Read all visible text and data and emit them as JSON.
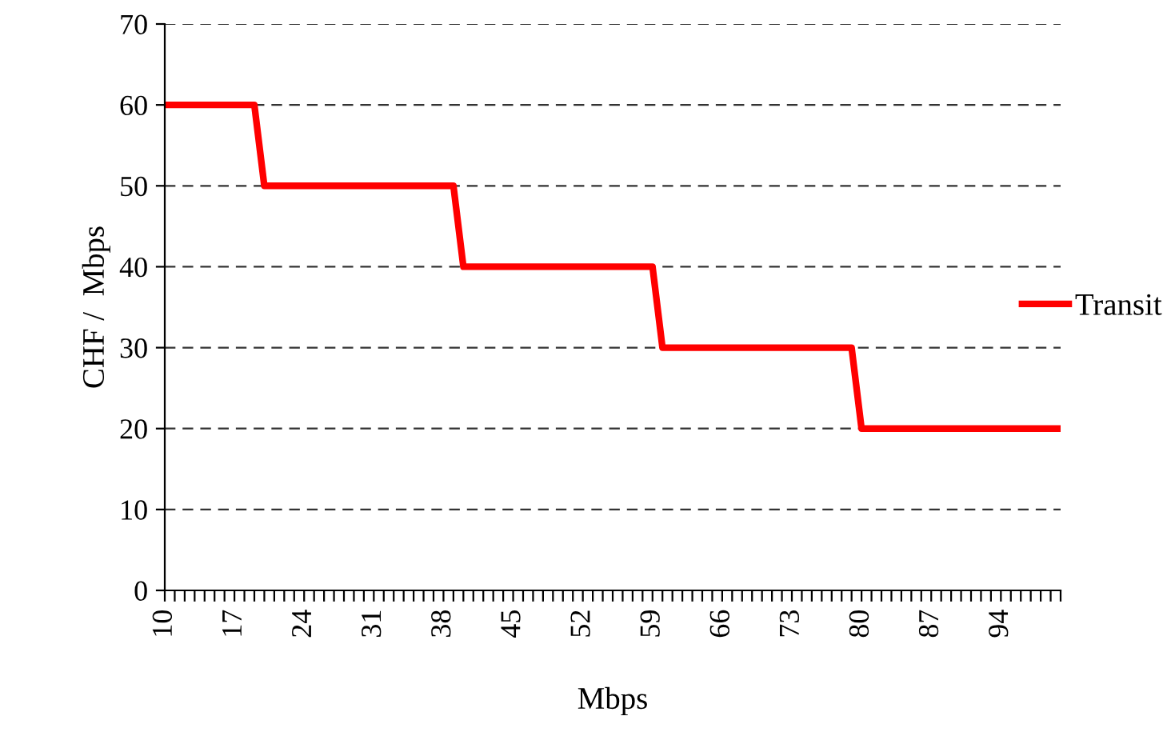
{
  "chart_data": {
    "type": "line",
    "xlabel": "Mbps",
    "ylabel": "CHF /  Mbps",
    "categories": [
      "10",
      null,
      null,
      null,
      null,
      null,
      null,
      "17",
      null,
      null,
      null,
      null,
      null,
      null,
      "24",
      null,
      null,
      null,
      null,
      null,
      null,
      "31",
      null,
      null,
      null,
      null,
      null,
      null,
      "38",
      null,
      null,
      null,
      null,
      null,
      null,
      "45",
      null,
      null,
      null,
      null,
      null,
      null,
      "52",
      null,
      null,
      null,
      null,
      null,
      null,
      "59",
      null,
      null,
      null,
      null,
      null,
      null,
      "66",
      null,
      null,
      null,
      null,
      null,
      null,
      "73",
      null,
      null,
      null,
      null,
      null,
      null,
      "80",
      null,
      null,
      null,
      null,
      null,
      null,
      "87",
      null,
      null,
      null,
      null,
      null,
      null,
      "94",
      null,
      null,
      null,
      null,
      null,
      null
    ],
    "series": [
      {
        "name": "Transit",
        "color": "#ff0000",
        "values": [
          60,
          60,
          60,
          60,
          60,
          60,
          60,
          60,
          60,
          60,
          50,
          50,
          50,
          50,
          50,
          50,
          50,
          50,
          50,
          50,
          50,
          50,
          50,
          50,
          50,
          50,
          50,
          50,
          50,
          50,
          40,
          40,
          40,
          40,
          40,
          40,
          40,
          40,
          40,
          40,
          40,
          40,
          40,
          40,
          40,
          40,
          40,
          40,
          40,
          40,
          30,
          30,
          30,
          30,
          30,
          30,
          30,
          30,
          30,
          30,
          30,
          30,
          30,
          30,
          30,
          30,
          30,
          30,
          30,
          30,
          20,
          20,
          20,
          20,
          20,
          20,
          20,
          20,
          20,
          20,
          20,
          20,
          20,
          20,
          20,
          20,
          20,
          20,
          20,
          20,
          20
        ]
      }
    ],
    "ylim": [
      0,
      70
    ],
    "yticks": [
      0,
      10,
      20,
      30,
      40,
      50,
      60,
      70
    ],
    "grid": "y",
    "legend": "right",
    "marker": "none",
    "line_style": "solid"
  }
}
